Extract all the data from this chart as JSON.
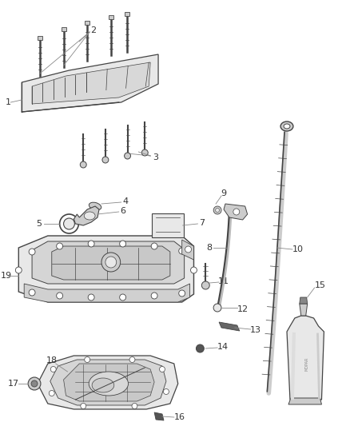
{
  "bg": "#ffffff",
  "lc": "#444444",
  "lc_light": "#888888",
  "gray_light": "#e8e8e8",
  "gray_mid": "#cccccc",
  "gray_dark": "#999999",
  "tc": "#333333",
  "figsize": [
    4.38,
    5.33
  ],
  "dpi": 100
}
